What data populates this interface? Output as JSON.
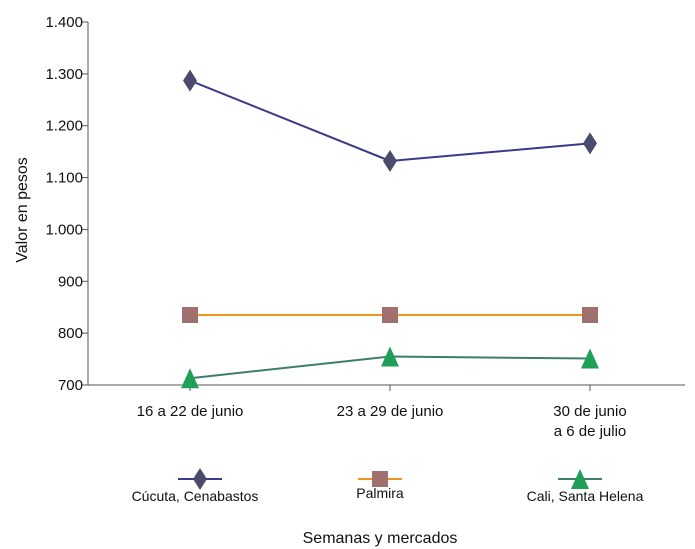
{
  "chart_data": {
    "type": "line",
    "title": "",
    "xlabel": "Semanas y mercados",
    "ylabel": "Valor en pesos",
    "ylim": [
      700,
      1400
    ],
    "y_ticks": [
      {
        "value": 700,
        "label": "700"
      },
      {
        "value": 800,
        "label": "800"
      },
      {
        "value": 900,
        "label": "900"
      },
      {
        "value": 1000,
        "label": "1.000"
      },
      {
        "value": 1100,
        "label": "1.100"
      },
      {
        "value": 1200,
        "label": "1.200"
      },
      {
        "value": 1300,
        "label": "1.300"
      },
      {
        "value": 1400,
        "label": "1.400"
      }
    ],
    "categories": [
      [
        "16 a 22 de junio"
      ],
      [
        "23 a 29 de junio"
      ],
      [
        "30 de junio",
        "a 6 de julio"
      ]
    ],
    "grid": false,
    "legend_position": "bottom",
    "series": [
      {
        "name": "Cúcuta, Cenabastos",
        "values": [
          1287,
          1132,
          1166
        ],
        "line_color": "#3a3a8c",
        "marker": "diamond",
        "marker_color": "#4a4a6a"
      },
      {
        "name": "Palmira",
        "values": [
          835,
          835,
          835
        ],
        "line_color": "#f2951f",
        "marker": "square",
        "marker_color": "#a0706e"
      },
      {
        "name": "Cali, Santa Helena",
        "values": [
          713,
          755,
          751
        ],
        "line_color": "#3c7f6a",
        "marker": "triangle",
        "marker_color": "#1fa056"
      }
    ]
  }
}
